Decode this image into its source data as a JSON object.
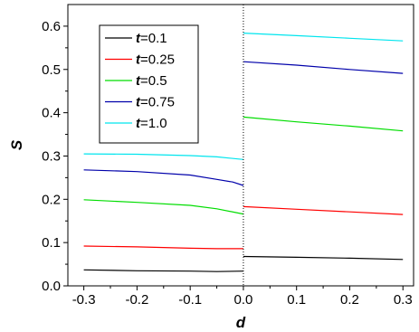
{
  "chart_data": {
    "type": "line",
    "xlabel": "d",
    "ylabel": "S",
    "xlim": [
      -0.33,
      0.32
    ],
    "ylim": [
      0.0,
      0.65
    ],
    "x_ticks": [
      "-0.3",
      "-0.2",
      "-0.1",
      "0.0",
      "0.1",
      "0.2",
      "0.3"
    ],
    "x_tick_values": [
      -0.3,
      -0.2,
      -0.1,
      0.0,
      0.1,
      0.2,
      0.3
    ],
    "y_ticks": [
      "0.0",
      "0.1",
      "0.2",
      "0.3",
      "0.4",
      "0.5",
      "0.6"
    ],
    "y_tick_values": [
      0.0,
      0.1,
      0.2,
      0.3,
      0.4,
      0.5,
      0.6
    ],
    "divider_x": 0.0,
    "grid": false,
    "legend_position": "top-left",
    "series": [
      {
        "name": "t=0.1",
        "color": "#000000",
        "left": {
          "x": [
            -0.3,
            -0.2,
            -0.1,
            -0.05,
            0.0
          ],
          "y": [
            0.037,
            0.035,
            0.034,
            0.033,
            0.034
          ]
        },
        "right": {
          "x": [
            0.0,
            0.1,
            0.2,
            0.3
          ],
          "y": [
            0.068,
            0.066,
            0.064,
            0.061
          ]
        }
      },
      {
        "name": "t=0.25",
        "color": "#ff0000",
        "left": {
          "x": [
            -0.3,
            -0.2,
            -0.1,
            -0.05,
            0.0
          ],
          "y": [
            0.092,
            0.09,
            0.087,
            0.086,
            0.086
          ]
        },
        "right": {
          "x": [
            0.0,
            0.1,
            0.2,
            0.3
          ],
          "y": [
            0.183,
            0.177,
            0.171,
            0.165
          ]
        }
      },
      {
        "name": "t=0.5",
        "color": "#00dd00",
        "left": {
          "x": [
            -0.3,
            -0.2,
            -0.1,
            -0.05,
            0.0
          ],
          "y": [
            0.199,
            0.193,
            0.186,
            0.178,
            0.166
          ]
        },
        "right": {
          "x": [
            0.0,
            0.1,
            0.2,
            0.3
          ],
          "y": [
            0.39,
            0.379,
            0.369,
            0.358
          ]
        }
      },
      {
        "name": "t=0.75",
        "color": "#0000aa",
        "left": {
          "x": [
            -0.3,
            -0.2,
            -0.1,
            -0.05,
            -0.02,
            0.0
          ],
          "y": [
            0.268,
            0.264,
            0.256,
            0.246,
            0.24,
            0.232
          ]
        },
        "right": {
          "x": [
            0.0,
            0.1,
            0.2,
            0.3
          ],
          "y": [
            0.518,
            0.51,
            0.5,
            0.491
          ]
        }
      },
      {
        "name": "t=1.0",
        "color": "#00e5ee",
        "left": {
          "x": [
            -0.3,
            -0.2,
            -0.1,
            -0.05,
            0.0
          ],
          "y": [
            0.305,
            0.304,
            0.301,
            0.298,
            0.292
          ]
        },
        "right": {
          "x": [
            0.0,
            0.1,
            0.2,
            0.3
          ],
          "y": [
            0.584,
            0.578,
            0.572,
            0.566
          ]
        }
      }
    ]
  }
}
